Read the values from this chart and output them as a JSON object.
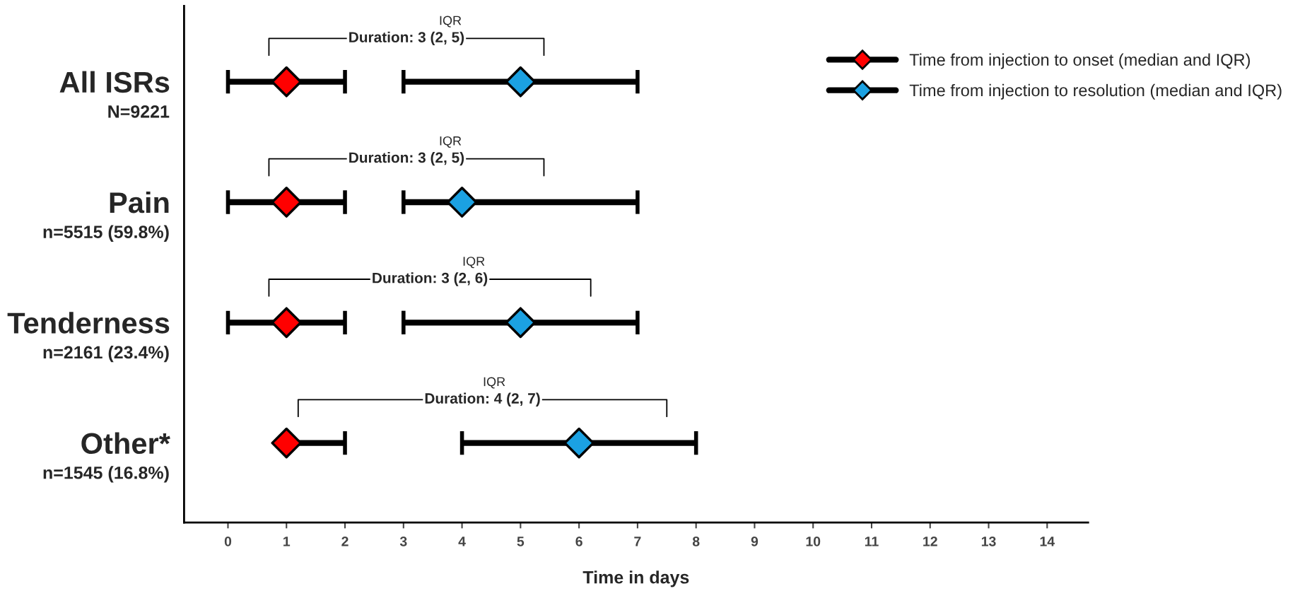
{
  "chart_data": {
    "type": "scatter",
    "orientation": "horizontal",
    "xlabel": "Time in days",
    "categories": [
      "All ISRs",
      "Pain",
      "Tenderness",
      "Other*"
    ],
    "series": [
      {
        "name": "Time from injection to onset (median and IQR)",
        "color": "#ff0000",
        "values": [
          1,
          1,
          1,
          1
        ],
        "errors": [
          [
            0,
            2
          ],
          [
            0,
            2
          ],
          [
            0,
            2
          ],
          [
            1,
            2
          ]
        ]
      },
      {
        "name": "Time from injection to resolution (median and IQR)",
        "color": "#1ba1e2",
        "values": [
          5,
          4,
          5,
          6
        ],
        "errors": [
          [
            3,
            7
          ],
          [
            3,
            7
          ],
          [
            3,
            7
          ],
          [
            4,
            8
          ]
        ]
      }
    ],
    "xlim": [
      -0.75,
      14.7
    ],
    "xticks": [
      0,
      1,
      2,
      3,
      4,
      5,
      6,
      7,
      8,
      9,
      10,
      11,
      12,
      13,
      14
    ],
    "marker": "diamond",
    "grid": false,
    "legend": "top right",
    "annotations": [
      "N=9221",
      "n=5515 (59.8%)",
      "n=2161 (23.4%)",
      "n=1545 (16.8%)",
      "IQR",
      "Duration: 3 (2, 5)",
      "IQR",
      "Duration: 3 (2, 5)",
      "IQR",
      "Duration: 3 (2, 6)",
      "IQR",
      "Duration: 4 (2, 7)"
    ]
  }
}
